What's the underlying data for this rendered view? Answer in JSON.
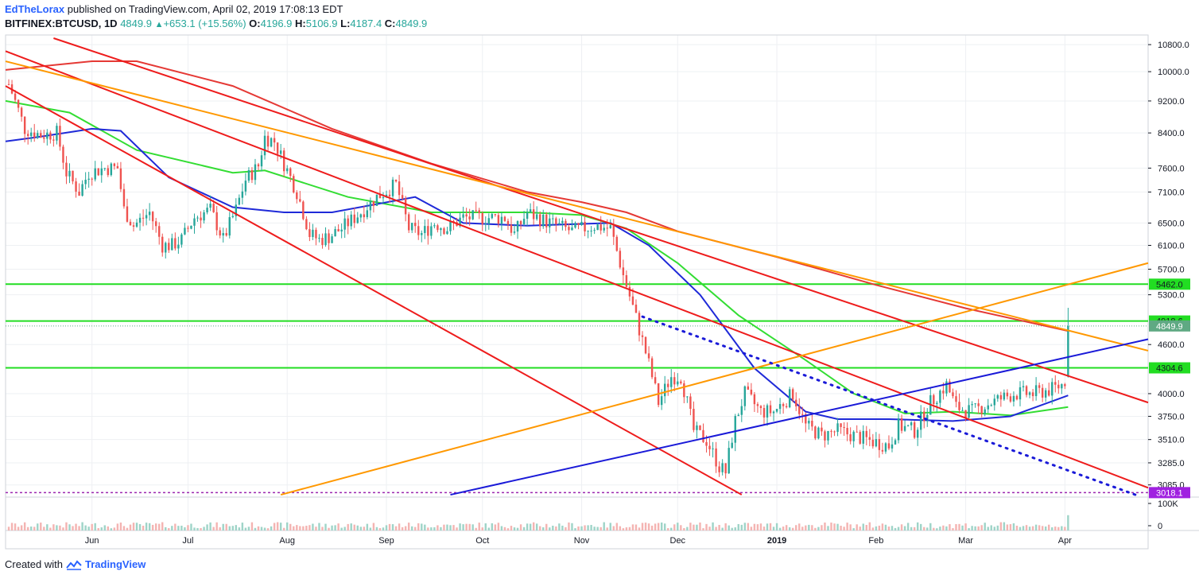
{
  "header": {
    "author": "EdTheLorax",
    "published": "published on TradingView.com, April 02, 2019 17:08:13 EDT",
    "symbol": "BITFINEX:BTCUSD, 1D",
    "last": "4849.9",
    "change": "+653.1 (+15.56%)",
    "open_label": "O:",
    "open": "4196.9",
    "high_label": "H:",
    "high": "5106.9",
    "low_label": "L:",
    "low": "4187.4",
    "close_label": "C:",
    "close": "4849.9"
  },
  "footer": {
    "created_with": "Created with",
    "brand": "TradingView"
  },
  "colors": {
    "up": "#26a69a",
    "down": "#ef5350",
    "ma_red": "#e53935",
    "ma_green": "#33dd33",
    "ma_blue": "#1f2ad8",
    "line_red": "#ee1c1c",
    "line_orange": "#ff9800",
    "line_blue": "#1a1ad8",
    "level_green": "#22dd22",
    "level_purple": "#9c27b0"
  },
  "chart_data": {
    "type": "candlestick",
    "symbol": "BITFINEX:BTCUSD",
    "interval": "1D",
    "y_scale": "log",
    "ylim": [
      2980,
      11100
    ],
    "xlim": [
      "2018-05-05",
      "2019-04-27"
    ],
    "price_ticks": [
      "10800.0",
      "10000.0",
      "9200.0",
      "8400.0",
      "7600.0",
      "7100.0",
      "6500.0",
      "6100.0",
      "5700.0",
      "5300.0",
      "4600.0",
      "4000.0",
      "3750.0",
      "3510.0",
      "3285.0",
      "3085.0"
    ],
    "time_ticks": [
      {
        "label": "Jun",
        "date": "2018-06-01"
      },
      {
        "label": "Jul",
        "date": "2018-07-01"
      },
      {
        "label": "Aug",
        "date": "2018-08-01"
      },
      {
        "label": "Sep",
        "date": "2018-09-01"
      },
      {
        "label": "Oct",
        "date": "2018-10-01"
      },
      {
        "label": "Nov",
        "date": "2018-11-01"
      },
      {
        "label": "Dec",
        "date": "2018-12-01"
      },
      {
        "label": "2019",
        "date": "2019-01-01"
      },
      {
        "label": "Feb",
        "date": "2019-02-01"
      },
      {
        "label": "Mar",
        "date": "2019-03-01"
      },
      {
        "label": "Apr",
        "date": "2019-04-01"
      }
    ],
    "levels": [
      {
        "label": "5462.0",
        "value": 5462.0,
        "color": "#22dd22",
        "tag_bg": "#22dd22"
      },
      {
        "label": "4918.6",
        "value": 4918.6,
        "color": "#22dd22",
        "tag_bg": "#22dd22"
      },
      {
        "label": "4304.6",
        "value": 4304.6,
        "color": "#22dd22",
        "tag_bg": "#22dd22"
      },
      {
        "label": "3018.1",
        "value": 3018.1,
        "color": "#9c27b0",
        "tag_bg": "#a020e0",
        "dashed": true
      }
    ],
    "last_price": {
      "label": "4849.9",
      "value": 4849.9,
      "tag_bg": "#5fa983"
    },
    "close_series": [
      [
        "2018-05-06",
        9650
      ],
      [
        "2018-05-11",
        8500
      ],
      [
        "2018-05-16",
        8350
      ],
      [
        "2018-05-21",
        8400
      ],
      [
        "2018-05-24",
        7500
      ],
      [
        "2018-05-28",
        7100
      ],
      [
        "2018-05-31",
        7500
      ],
      [
        "2018-06-05",
        7600
      ],
      [
        "2018-06-09",
        7600
      ],
      [
        "2018-06-11",
        6750
      ],
      [
        "2018-06-14",
        6450
      ],
      [
        "2018-06-19",
        6700
      ],
      [
        "2018-06-23",
        6100
      ],
      [
        "2018-06-26",
        6100
      ],
      [
        "2018-06-29",
        6200
      ],
      [
        "2018-07-03",
        6600
      ],
      [
        "2018-07-08",
        6750
      ],
      [
        "2018-07-12",
        6200
      ],
      [
        "2018-07-16",
        6750
      ],
      [
        "2018-07-19",
        7350
      ],
      [
        "2018-07-23",
        7650
      ],
      [
        "2018-07-25",
        8300
      ],
      [
        "2018-07-28",
        8200
      ],
      [
        "2018-07-31",
        7700
      ],
      [
        "2018-08-04",
        7100
      ],
      [
        "2018-08-08",
        6300
      ],
      [
        "2018-08-11",
        6200
      ],
      [
        "2018-08-14",
        6250
      ],
      [
        "2018-08-18",
        6400
      ],
      [
        "2018-08-24",
        6700
      ],
      [
        "2018-08-29",
        7000
      ],
      [
        "2018-09-04",
        7250
      ],
      [
        "2018-09-08",
        6400
      ],
      [
        "2018-09-12",
        6300
      ],
      [
        "2018-09-16",
        6500
      ],
      [
        "2018-09-20",
        6400
      ],
      [
        "2018-09-25",
        6600
      ],
      [
        "2018-10-01",
        6600
      ],
      [
        "2018-10-08",
        6600
      ],
      [
        "2018-10-11",
        6300
      ],
      [
        "2018-10-15",
        6700
      ],
      [
        "2018-10-20",
        6550
      ],
      [
        "2018-10-29",
        6350
      ],
      [
        "2018-11-05",
        6450
      ],
      [
        "2018-11-10",
        6400
      ],
      [
        "2018-11-14",
        5600
      ],
      [
        "2018-11-19",
        4800
      ],
      [
        "2018-11-21",
        4500
      ],
      [
        "2018-11-25",
        3900
      ],
      [
        "2018-11-29",
        4200
      ],
      [
        "2018-12-02",
        4200
      ],
      [
        "2018-12-06",
        3600
      ],
      [
        "2018-12-10",
        3500
      ],
      [
        "2018-12-14",
        3250
      ],
      [
        "2018-12-16",
        3200
      ],
      [
        "2018-12-19",
        3700
      ],
      [
        "2018-12-22",
        4000
      ],
      [
        "2018-12-27",
        3800
      ],
      [
        "2018-12-31",
        3800
      ],
      [
        "2019-01-06",
        4000
      ],
      [
        "2019-01-10",
        3650
      ],
      [
        "2019-01-15",
        3550
      ],
      [
        "2019-01-20",
        3600
      ],
      [
        "2019-01-25",
        3550
      ],
      [
        "2019-01-30",
        3500
      ],
      [
        "2019-02-05",
        3450
      ],
      [
        "2019-02-08",
        3650
      ],
      [
        "2019-02-13",
        3600
      ],
      [
        "2019-02-18",
        3900
      ],
      [
        "2019-02-23",
        4100
      ],
      [
        "2019-02-26",
        3850
      ],
      [
        "2019-03-03",
        3800
      ],
      [
        "2019-03-09",
        3900
      ],
      [
        "2019-03-16",
        4000
      ],
      [
        "2019-03-22",
        4000
      ],
      [
        "2019-03-28",
        4050
      ],
      [
        "2019-03-31",
        4100
      ],
      [
        "2019-04-01",
        4150
      ],
      [
        "2019-04-02",
        4849.9
      ]
    ],
    "ma_red": [
      [
        "2018-05-05",
        10050
      ],
      [
        "2018-06-01",
        10300
      ],
      [
        "2018-06-15",
        10300
      ],
      [
        "2018-07-15",
        9600
      ],
      [
        "2018-08-15",
        8500
      ],
      [
        "2018-09-15",
        7700
      ],
      [
        "2018-10-15",
        7100
      ],
      [
        "2018-11-01",
        6900
      ],
      [
        "2018-11-15",
        6700
      ],
      [
        "2018-12-01",
        6350
      ],
      [
        "2019-01-01",
        5900
      ],
      [
        "2019-02-01",
        5450
      ],
      [
        "2019-03-01",
        5100
      ],
      [
        "2019-04-02",
        4780
      ]
    ],
    "ma_green": [
      [
        "2018-05-05",
        9200
      ],
      [
        "2018-05-25",
        8900
      ],
      [
        "2018-06-15",
        8000
      ],
      [
        "2018-07-15",
        7500
      ],
      [
        "2018-07-25",
        7550
      ],
      [
        "2018-08-20",
        7000
      ],
      [
        "2018-09-15",
        6700
      ],
      [
        "2018-10-15",
        6700
      ],
      [
        "2018-11-01",
        6650
      ],
      [
        "2018-11-15",
        6400
      ],
      [
        "2018-12-01",
        5800
      ],
      [
        "2018-12-20",
        5000
      ],
      [
        "2019-01-10",
        4400
      ],
      [
        "2019-01-25",
        4000
      ],
      [
        "2019-02-10",
        3780
      ],
      [
        "2019-02-25",
        3800
      ],
      [
        "2019-03-15",
        3760
      ],
      [
        "2019-04-02",
        3850
      ]
    ],
    "ma_blue": [
      [
        "2018-05-05",
        8200
      ],
      [
        "2018-05-15",
        8300
      ],
      [
        "2018-06-01",
        8500
      ],
      [
        "2018-06-10",
        8450
      ],
      [
        "2018-06-25",
        7400
      ],
      [
        "2018-07-15",
        6800
      ],
      [
        "2018-07-31",
        6700
      ],
      [
        "2018-08-15",
        6700
      ],
      [
        "2018-09-10",
        7000
      ],
      [
        "2018-09-25",
        6500
      ],
      [
        "2018-10-15",
        6450
      ],
      [
        "2018-11-10",
        6500
      ],
      [
        "2018-11-22",
        6100
      ],
      [
        "2018-12-08",
        5300
      ],
      [
        "2018-12-25",
        4300
      ],
      [
        "2019-01-10",
        3800
      ],
      [
        "2019-01-20",
        3720
      ],
      [
        "2019-02-05",
        3720
      ],
      [
        "2019-02-25",
        3700
      ],
      [
        "2019-03-15",
        3750
      ],
      [
        "2019-04-02",
        3980
      ]
    ],
    "trendlines": [
      {
        "color": "#ee1c1c",
        "from": [
          "2018-05-20",
          11000
        ],
        "to": [
          "2019-04-27",
          3900
        ]
      },
      {
        "color": "#ee1c1c",
        "from": [
          "2018-05-05",
          10600
        ],
        "to": [
          "2019-04-27",
          3060
        ]
      },
      {
        "color": "#ee1c1c",
        "from": [
          "2018-05-05",
          9600
        ],
        "to": [
          "2018-12-21",
          3000
        ]
      },
      {
        "color": "#ff9800",
        "from": [
          "2018-05-05",
          10300
        ],
        "to": [
          "2019-04-27",
          4520
        ]
      },
      {
        "color": "#ff9800",
        "from": [
          "2018-07-30",
          3000
        ],
        "to": [
          "2019-04-27",
          5800
        ]
      },
      {
        "color": "#1a1ad8",
        "from": [
          "2018-09-21",
          3000
        ],
        "to": [
          "2019-04-27",
          4670
        ]
      },
      {
        "color": "#1a1ad8",
        "dotted": true,
        "from": [
          "2018-11-20",
          4980
        ],
        "to": [
          "2019-04-23",
          3000
        ]
      }
    ],
    "volume_axis": [
      "100K",
      "0"
    ],
    "volume_ylim": [
      0,
      100000
    ]
  }
}
